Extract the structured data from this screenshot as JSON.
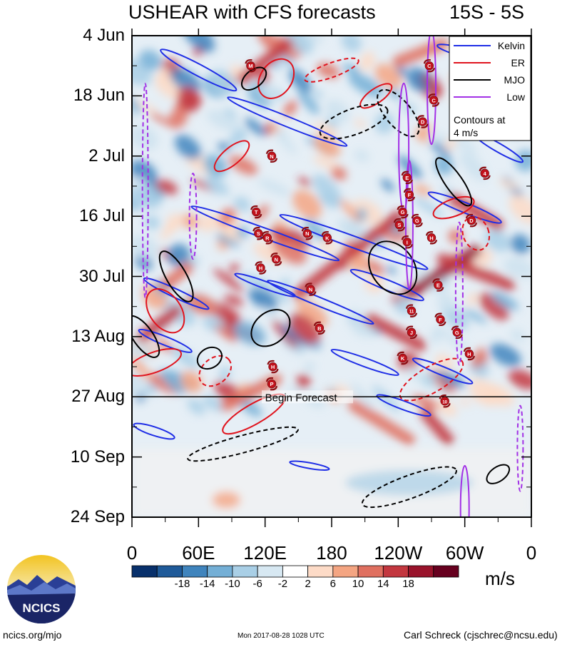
{
  "title": "USHEAR with CFS forecasts",
  "region": "15S - 5S",
  "units": "m/s",
  "footer": {
    "left": "ncics.org/mjo",
    "middle": "Mon 2017-08-28 1028 UTC",
    "right": "Carl Schreck (cjschrec@ncsu.edu)"
  },
  "logo_text": "NCICS",
  "chart_data": {
    "type": "heatmap",
    "title": "USHEAR with CFS forecasts",
    "subtitle": "15S - 5S",
    "x_tick_labels": [
      "0",
      "60E",
      "120E",
      "180",
      "120W",
      "60W",
      "0"
    ],
    "x_ticks_degE": [
      0,
      60,
      120,
      180,
      240,
      300,
      360
    ],
    "xlim": [
      0,
      360
    ],
    "y_tick_labels": [
      "4 Jun",
      "18 Jun",
      "2 Jul",
      "16 Jul",
      "30 Jul",
      "13 Aug",
      "27 Aug",
      "10 Sep",
      "24 Sep"
    ],
    "y_ticks_days_from_top": [
      0,
      14,
      28,
      42,
      56,
      70,
      84,
      98,
      112
    ],
    "forecast_line": {
      "label": "Begin Forecast",
      "date": "27 Aug"
    },
    "colorbar": {
      "units": "m/s",
      "tick_labels": [
        -18,
        -14,
        -10,
        -6,
        -2,
        2,
        6,
        10,
        14,
        18
      ],
      "colors": [
        "#08306b",
        "#1f5a99",
        "#3f84bd",
        "#74afd6",
        "#a9cfe6",
        "#d7e8f2",
        "#ffffff",
        "#fddbc7",
        "#f4a582",
        "#e07060",
        "#c3373f",
        "#99132b",
        "#67001f"
      ]
    },
    "legend": {
      "placement": "top-right",
      "entries": [
        {
          "name": "Kelvin",
          "color": "#1f2ee6",
          "style": "solid"
        },
        {
          "name": "ER",
          "color": "#e0141e",
          "style": "solid"
        },
        {
          "name": "MJO",
          "color": "#000000",
          "style": "solid"
        },
        {
          "name": "Low",
          "color": "#a230e6",
          "style": "solid"
        }
      ],
      "note": "Contours at 4 m/s"
    },
    "storms": [
      {
        "label": "M",
        "lon": 107,
        "day": 7
      },
      {
        "label": "C",
        "lon": 268,
        "day": 7
      },
      {
        "label": "C",
        "lon": 272,
        "day": 15
      },
      {
        "label": "D",
        "lon": 262,
        "day": 20
      },
      {
        "label": "N",
        "lon": 126,
        "day": 28
      },
      {
        "label": "4",
        "lon": 318,
        "day": 32
      },
      {
        "label": "E",
        "lon": 248,
        "day": 33
      },
      {
        "label": "F",
        "lon": 250,
        "day": 37
      },
      {
        "label": "G",
        "lon": 244,
        "day": 41
      },
      {
        "label": "T",
        "lon": 112,
        "day": 41
      },
      {
        "label": "D",
        "lon": 306,
        "day": 43
      },
      {
        "label": "S",
        "lon": 241,
        "day": 44
      },
      {
        "label": "G",
        "lon": 257,
        "day": 43
      },
      {
        "label": "S",
        "lon": 114,
        "day": 46
      },
      {
        "label": "R",
        "lon": 122,
        "day": 47
      },
      {
        "label": "N",
        "lon": 158,
        "day": 46
      },
      {
        "label": "K",
        "lon": 176,
        "day": 47
      },
      {
        "label": "H",
        "lon": 270,
        "day": 47
      },
      {
        "label": "I",
        "lon": 248,
        "day": 48
      },
      {
        "label": "N",
        "lon": 130,
        "day": 52
      },
      {
        "label": "H",
        "lon": 116,
        "day": 54
      },
      {
        "label": "E",
        "lon": 276,
        "day": 58
      },
      {
        "label": "N",
        "lon": 161,
        "day": 59
      },
      {
        "label": "11",
        "lon": 252,
        "day": 64
      },
      {
        "label": "F",
        "lon": 278,
        "day": 66
      },
      {
        "label": "G",
        "lon": 293,
        "day": 69
      },
      {
        "label": "B",
        "lon": 169,
        "day": 68
      },
      {
        "label": "J",
        "lon": 252,
        "day": 69
      },
      {
        "label": "K",
        "lon": 244,
        "day": 75
      },
      {
        "label": "H",
        "lon": 304,
        "day": 74
      },
      {
        "label": "H",
        "lon": 127,
        "day": 77
      },
      {
        "label": "P",
        "lon": 126,
        "day": 81
      },
      {
        "label": "10",
        "lon": 282,
        "day": 85
      }
    ]
  }
}
